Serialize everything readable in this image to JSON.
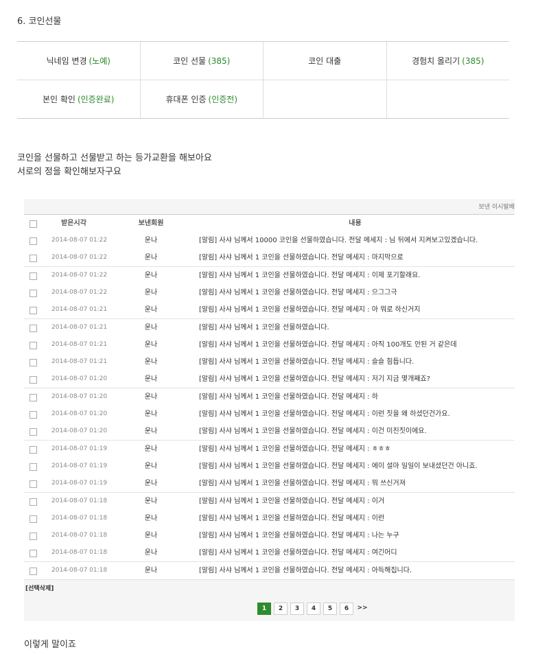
{
  "heading": "6. 코인선물",
  "menu": [
    [
      {
        "label": "닉네임 변경",
        "status": "(노예)"
      },
      {
        "label": "코인 선물",
        "status": "(385)"
      },
      {
        "label": "코인 대출"
      },
      {
        "label": "경험치 올리기",
        "status": "(385)"
      }
    ],
    [
      {
        "label": "본인 확인",
        "status": "(인증완료)"
      },
      {
        "label": "휴대폰 인증",
        "status": "(인증전)"
      }
    ]
  ],
  "intro": [
    "코인을 선물하고 선물받고 하는 등가교환을 해보아요",
    "서로의 정을 확인해보자구요"
  ],
  "table": {
    "top_link": "보낸 이시발배",
    "headers": [
      "받은시각",
      "보낸회원",
      "내용"
    ],
    "rows": [
      [
        "2014-08-07 01:22",
        "운나",
        "[알림] 사샤 님께서 10000 코인을 선물하였습니다. 전달 메세지 : 님 뒤에서 지켜보고있겠습니다."
      ],
      [
        "2014-08-07 01:22",
        "운나",
        "[알림] 사샤 님께서 1 코인을 선물하였습니다. 전달 메세지 : 마지막으로"
      ],
      [
        "2014-08-07 01:22",
        "운나",
        "[알림] 사샤 님께서 1 코인을 선물하였습니다. 전달 메세지 : 이제 포기할래요."
      ],
      [
        "2014-08-07 01:22",
        "운나",
        "[알림] 사샤 님께서 1 코인을 선물하였습니다. 전달 메세지 : 으그그극"
      ],
      [
        "2014-08-07 01:21",
        "운나",
        "[알림] 사샤 님께서 1 코인을 선물하였습니다. 전달 메세지 : 아 뭐로 하신거지"
      ],
      [
        "2014-08-07 01:21",
        "운나",
        "[알림] 사샤 님께서 1 코인을 선물하였습니다."
      ],
      [
        "2014-08-07 01:21",
        "운나",
        "[알림] 사샤 님께서 1 코인을 선물하였습니다. 전달 메세지 : 아직 100개도 안된 거 같은데"
      ],
      [
        "2014-08-07 01:21",
        "운나",
        "[알림] 사샤 님께서 1 코인을 선물하였습니다. 전달 메세지 : 슬슬 힘듭니다."
      ],
      [
        "2014-08-07 01:20",
        "운나",
        "[알림] 사샤 님께서 1 코인을 선물하였습니다. 전달 메세지 : 저기 지금 몇개째죠?"
      ],
      [
        "2014-08-07 01:20",
        "운나",
        "[알림] 사샤 님께서 1 코인을 선물하였습니다. 전달 메세지 : 하"
      ],
      [
        "2014-08-07 01:20",
        "운나",
        "[알림] 사샤 님께서 1 코인을 선물하였습니다. 전달 메세지 : 이런 짓을 왜 하셨던건가요."
      ],
      [
        "2014-08-07 01:20",
        "운나",
        "[알림] 사샤 님께서 1 코인을 선물하였습니다. 전달 메세지 : 이건 미친짓이에요."
      ],
      [
        "2014-08-07 01:19",
        "운나",
        "[알림] 사샤 님께서 1 코인을 선물하였습니다. 전달 메세지 : ㅎㅎㅎ"
      ],
      [
        "2014-08-07 01:19",
        "운나",
        "[알림] 사샤 님께서 1 코인을 선물하였습니다. 전달 메세지 : 에이 설마 일일이 보내셨던건 아니죠."
      ],
      [
        "2014-08-07 01:19",
        "운나",
        "[알림] 사샤 님께서 1 코인을 선물하였습니다. 전달 메세지 : 뭐 쓰신거져"
      ],
      [
        "2014-08-07 01:18",
        "운나",
        "[알림] 사샤 님께서 1 코인을 선물하였습니다. 전달 메세지 : 이거"
      ],
      [
        "2014-08-07 01:18",
        "운나",
        "[알림] 사샤 님께서 1 코인을 선물하였습니다. 전달 메세지 : 이런"
      ],
      [
        "2014-08-07 01:18",
        "운나",
        "[알림] 사샤 님께서 1 코인을 선물하였습니다. 전달 메세지 : 나는 누구"
      ],
      [
        "2014-08-07 01:18",
        "운나",
        "[알림] 사샤 님께서 1 코인을 선물하였습니다. 전달 메세지 : 여긴어디"
      ],
      [
        "2014-08-07 01:18",
        "운나",
        "[알림] 사샤 님께서 1 코인을 선물하였습니다. 전달 메세지 : 아득해집니다."
      ]
    ],
    "delete_button": "[선택삭제]"
  },
  "pagination": [
    "1",
    "2",
    "3",
    "4",
    "5",
    "6",
    ">>"
  ],
  "footer_text": "이렇게 말이죠"
}
